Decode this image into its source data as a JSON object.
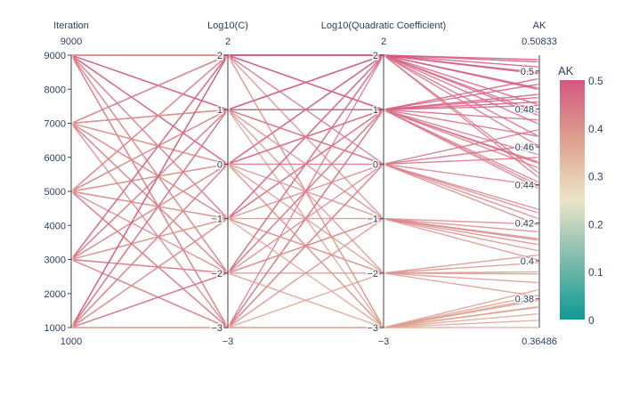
{
  "chart_data": {
    "type": "parallel-coordinates",
    "dimensions": [
      {
        "label": "Iteration",
        "range": [
          1000,
          9000
        ],
        "ticks": [
          1000,
          2000,
          3000,
          4000,
          5000,
          6000,
          7000,
          8000,
          9000
        ],
        "tick_labels": [
          "1000",
          "2000",
          "3000",
          "4000",
          "5000",
          "6000",
          "7000",
          "8000",
          "9000"
        ],
        "top_label": "9000",
        "bottom_label": "1000"
      },
      {
        "label": "Log10(C)",
        "range": [
          -3,
          2
        ],
        "ticks": [
          -3,
          -2,
          -1,
          0,
          1,
          2
        ],
        "tick_labels": [
          "−3",
          "−2",
          "−1",
          "0",
          "1",
          "2"
        ],
        "top_label": "2",
        "bottom_label": "−3"
      },
      {
        "label": "Log10(Quadratic Coefficient)",
        "range": [
          -3,
          2
        ],
        "ticks": [
          -3,
          -2,
          -1,
          0,
          1,
          2
        ],
        "tick_labels": [
          "−3",
          "−2",
          "−1",
          "0",
          "1",
          "2"
        ],
        "top_label": "2",
        "bottom_label": "−3"
      },
      {
        "label": "AK",
        "range": [
          0.36486,
          0.50833
        ],
        "ticks": [
          0.38,
          0.4,
          0.42,
          0.44,
          0.46,
          0.48,
          0.5
        ],
        "tick_labels": [
          "0.38",
          "0.4",
          "0.42",
          "0.44",
          "0.46",
          "0.48",
          "0.5"
        ],
        "top_label": "0.50833",
        "bottom_label": "0.36486"
      }
    ],
    "lines": [
      [
        9000,
        2,
        2,
        0.4985
      ],
      [
        9000,
        2,
        1,
        0.4931
      ],
      [
        9000,
        1,
        2,
        0.4902
      ],
      [
        9000,
        1,
        1,
        0.4861
      ],
      [
        9000,
        0,
        2,
        0.478
      ],
      [
        9000,
        0,
        1,
        0.4742
      ],
      [
        9000,
        -1,
        2,
        0.4654
      ],
      [
        9000,
        -2,
        1,
        0.4558
      ],
      [
        9000,
        -3,
        2,
        0.446
      ],
      [
        9000,
        -3,
        0,
        0.4187
      ],
      [
        9000,
        -2,
        -2,
        0.4031
      ],
      [
        9000,
        2,
        -3,
        0.382
      ],
      [
        7000,
        2,
        2,
        0.5048
      ],
      [
        7000,
        1,
        2,
        0.4991
      ],
      [
        7000,
        1,
        1,
        0.4877
      ],
      [
        7000,
        0,
        1,
        0.4655
      ],
      [
        7000,
        -1,
        1,
        0.4512
      ],
      [
        7000,
        -2,
        2,
        0.4436
      ],
      [
        7000,
        -3,
        1,
        0.438
      ],
      [
        7000,
        2,
        -1,
        0.4085
      ],
      [
        7000,
        0,
        -3,
        0.3792
      ],
      [
        7000,
        -1,
        -2,
        0.3931
      ],
      [
        7000,
        1,
        -3,
        0.3756
      ],
      [
        7000,
        -2,
        -1,
        0.4152
      ],
      [
        5000,
        2,
        2,
        0.5021
      ],
      [
        5000,
        2,
        1,
        0.496
      ],
      [
        5000,
        1,
        0,
        0.4692
      ],
      [
        5000,
        0,
        2,
        0.4821
      ],
      [
        5000,
        -1,
        1,
        0.4519
      ],
      [
        5000,
        -2,
        0,
        0.427
      ],
      [
        5000,
        -3,
        -1,
        0.4108
      ],
      [
        5000,
        1,
        -2,
        0.399
      ],
      [
        5000,
        0,
        -3,
        0.3849
      ],
      [
        5000,
        -1,
        -2,
        0.3885
      ],
      [
        5000,
        2,
        -3,
        0.3801
      ],
      [
        5000,
        -3,
        1,
        0.4412
      ],
      [
        3000,
        2,
        2,
        0.506
      ],
      [
        3000,
        1,
        1,
        0.4837
      ],
      [
        3000,
        0,
        0,
        0.4545
      ],
      [
        3000,
        -1,
        2,
        0.4719
      ],
      [
        3000,
        -2,
        -1,
        0.4052
      ],
      [
        3000,
        -3,
        -3,
        0.3721
      ],
      [
        3000,
        1,
        -1,
        0.4193
      ],
      [
        3000,
        0,
        -2,
        0.3942
      ],
      [
        3000,
        -1,
        -3,
        0.3687
      ],
      [
        3000,
        2,
        0,
        0.4612
      ],
      [
        3000,
        -2,
        1,
        0.4395
      ],
      [
        3000,
        -3,
        0,
        0.4251
      ],
      [
        1000,
        2,
        2,
        0.4909
      ],
      [
        1000,
        2,
        1,
        0.4818
      ],
      [
        1000,
        1,
        2,
        0.4764
      ],
      [
        1000,
        1,
        0,
        0.4397
      ],
      [
        1000,
        0,
        1,
        0.4488
      ],
      [
        1000,
        -1,
        0,
        0.4221
      ],
      [
        1000,
        -1,
        -1,
        0.4003
      ],
      [
        1000,
        -2,
        -3,
        0.3759
      ],
      [
        1000,
        -3,
        -2,
        0.3812
      ],
      [
        1000,
        0,
        -1,
        0.4116
      ],
      [
        1000,
        -2,
        2,
        0.4602
      ],
      [
        1000,
        -3,
        -3,
        0.3649
      ]
    ],
    "colorbar": {
      "title": "AK",
      "range": [
        0,
        0.5
      ],
      "ticks": [
        0,
        0.1,
        0.2,
        0.3,
        0.4,
        0.5
      ],
      "tick_labels": [
        "0",
        "0.1",
        "0.2",
        "0.3",
        "0.4",
        "0.5"
      ],
      "colorscale": [
        "#0e9a94",
        "#7dbbac",
        "#ece4c7",
        "#dea08f",
        "#d5567f"
      ]
    },
    "colors": {
      "axis": "#444444",
      "label": "#2a3f5f",
      "gridline": "#dddddd"
    }
  }
}
